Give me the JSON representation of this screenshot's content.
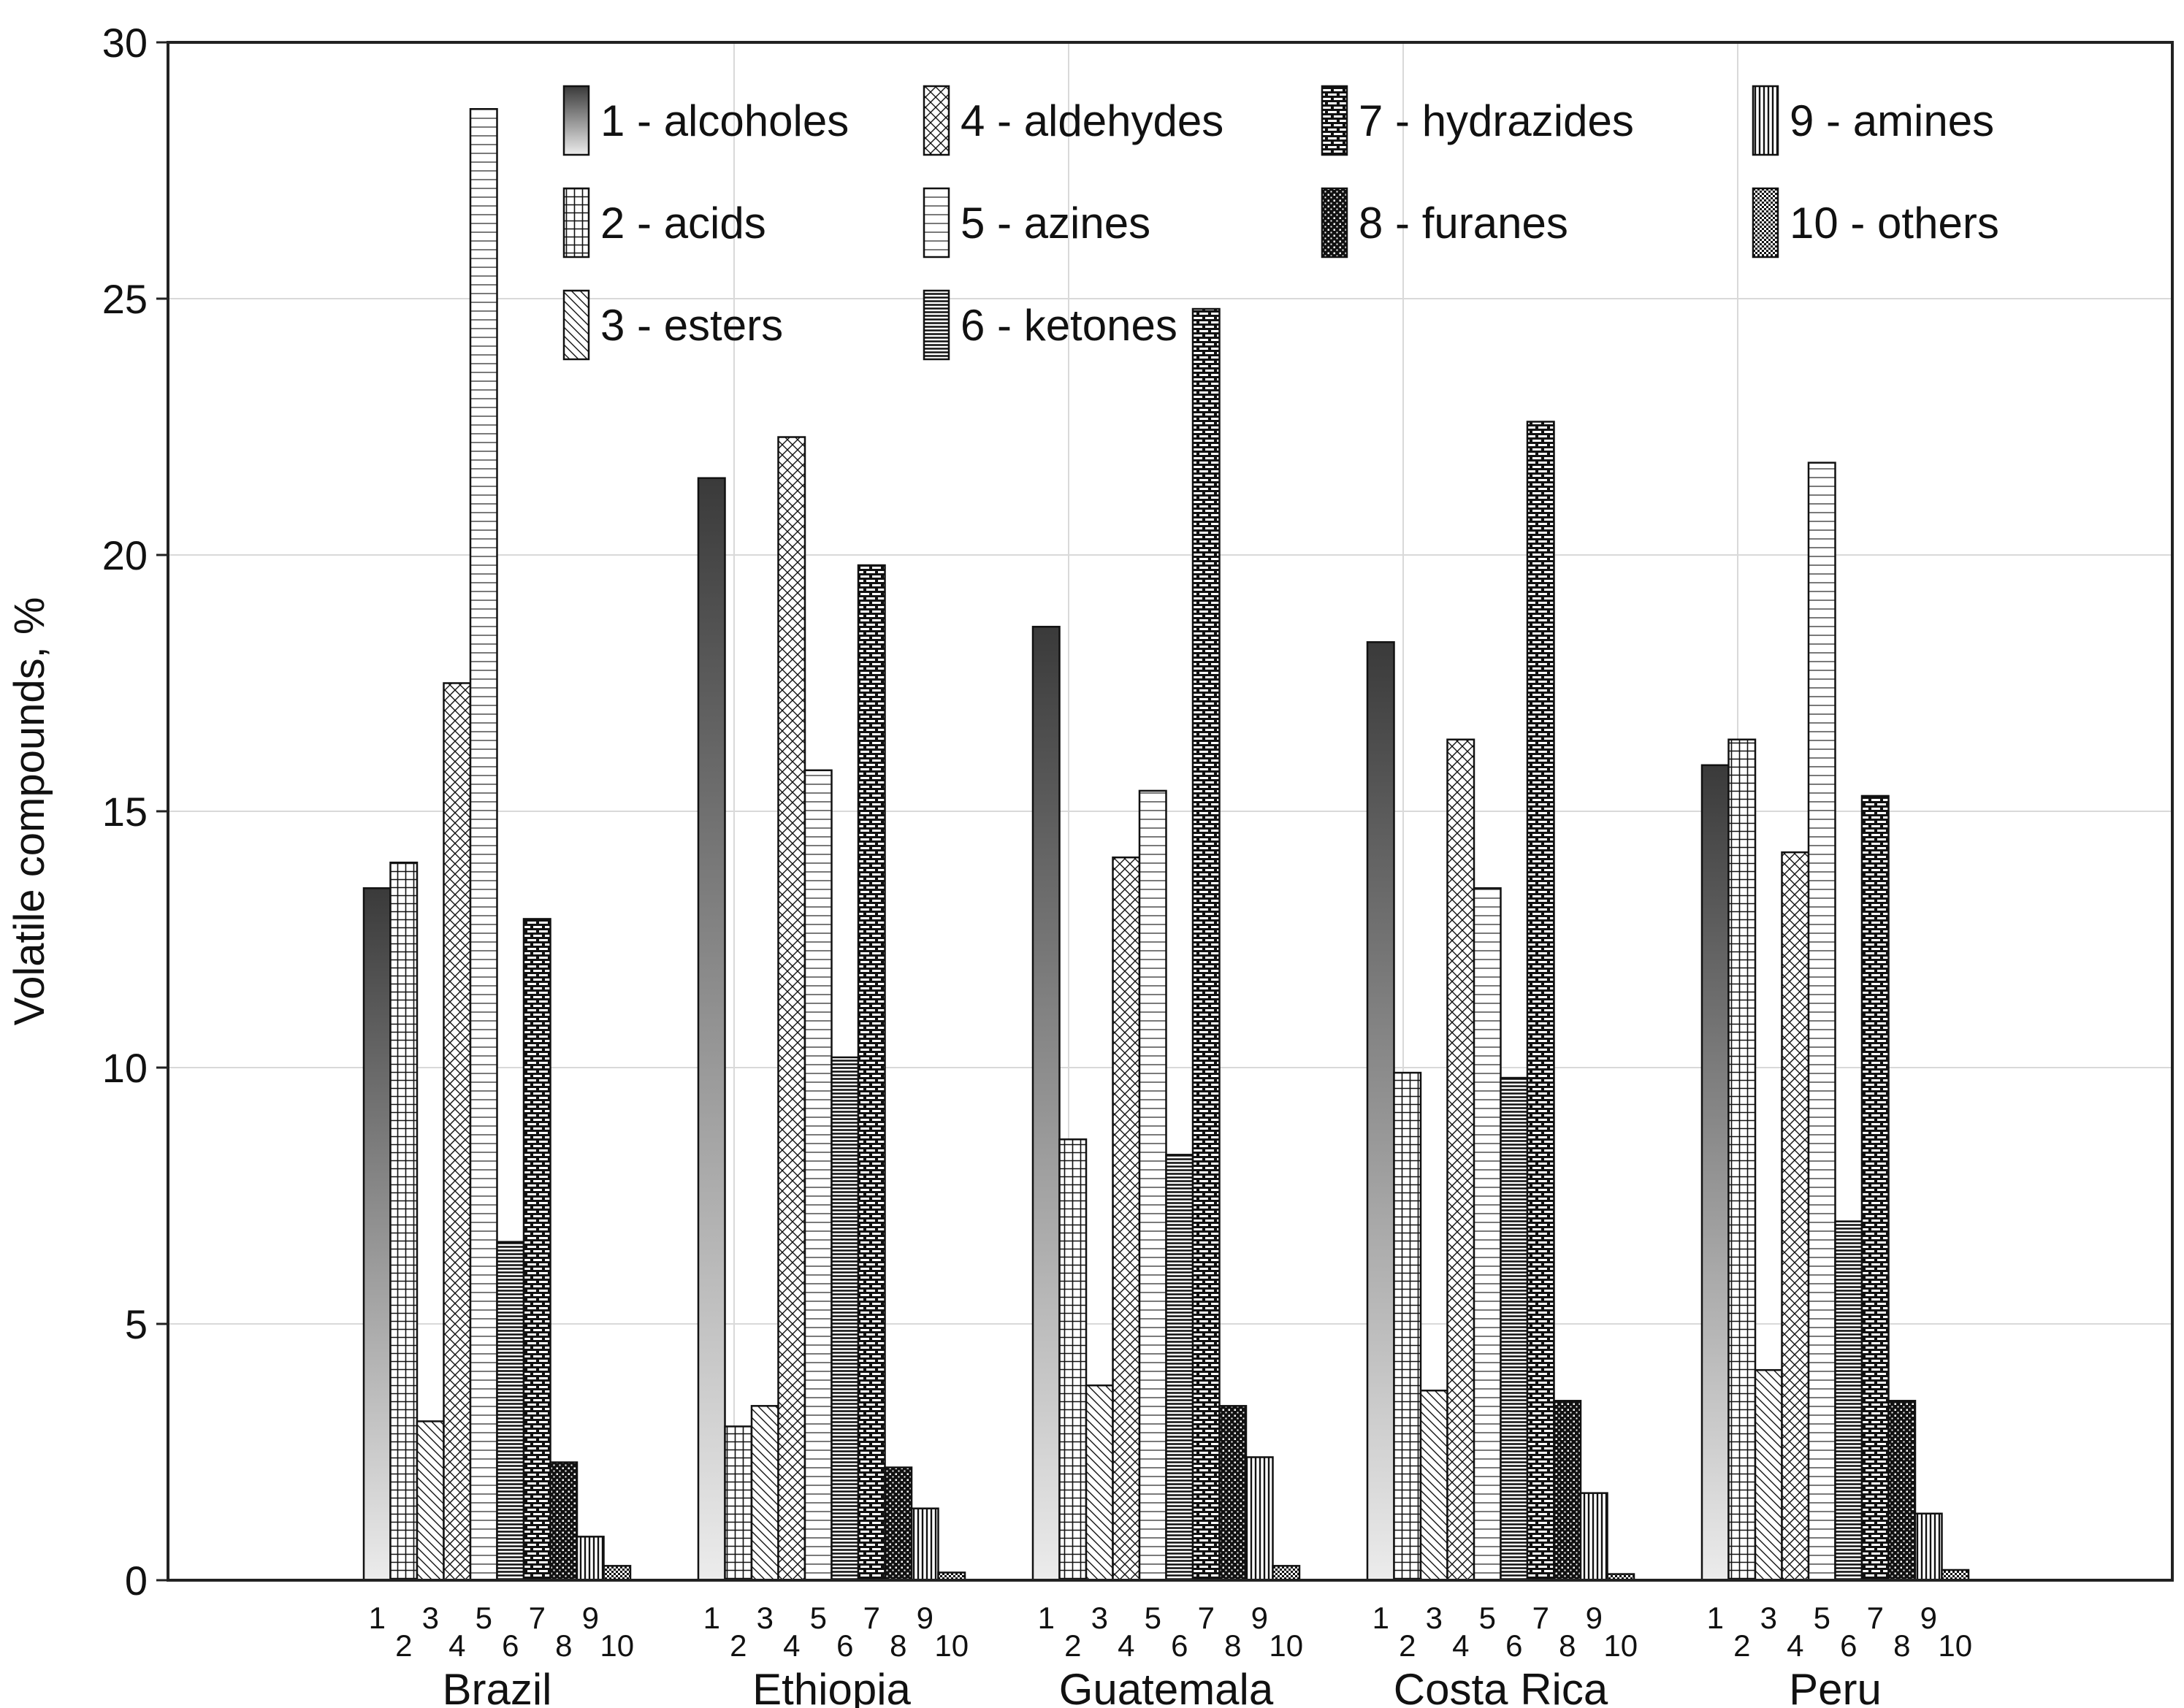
{
  "chart_data": {
    "type": "bar",
    "title": "",
    "xlabel": "",
    "ylabel": "Volatile compounds, %",
    "ylim": [
      0,
      30
    ],
    "yticks": [
      0,
      5,
      10,
      15,
      20,
      25,
      30
    ],
    "grid": true,
    "legend_position": "top",
    "categories": [
      "Brazil",
      "Ethiopia",
      "Guatemala",
      "Costa Rica",
      "Peru"
    ],
    "series": [
      {
        "id": "1",
        "name": "1 - alcoholes",
        "values": [
          13.5,
          21.5,
          18.6,
          18.3,
          15.9
        ]
      },
      {
        "id": "2",
        "name": "2 - acids",
        "values": [
          14.0,
          3.0,
          8.6,
          9.9,
          16.4
        ]
      },
      {
        "id": "3",
        "name": "3 - esters",
        "values": [
          3.1,
          3.4,
          3.8,
          3.7,
          4.1
        ]
      },
      {
        "id": "4",
        "name": "4 - aldehydes",
        "values": [
          17.5,
          22.3,
          14.1,
          16.4,
          14.2
        ]
      },
      {
        "id": "5",
        "name": "5 - azines",
        "values": [
          28.7,
          15.8,
          15.4,
          13.5,
          21.8
        ]
      },
      {
        "id": "6",
        "name": "6 - ketones",
        "values": [
          6.6,
          10.2,
          8.3,
          9.8,
          7.0
        ]
      },
      {
        "id": "7",
        "name": "7 - hydrazides",
        "values": [
          12.9,
          19.8,
          24.8,
          22.6,
          15.3
        ]
      },
      {
        "id": "8",
        "name": "8 - furanes",
        "values": [
          2.3,
          2.2,
          3.4,
          3.5,
          3.5
        ]
      },
      {
        "id": "9",
        "name": "9 - amines",
        "values": [
          0.85,
          1.4,
          2.4,
          1.7,
          1.3
        ]
      },
      {
        "id": "10",
        "name": "10 - others",
        "values": [
          0.28,
          0.15,
          0.28,
          0.12,
          0.2
        ]
      }
    ]
  }
}
